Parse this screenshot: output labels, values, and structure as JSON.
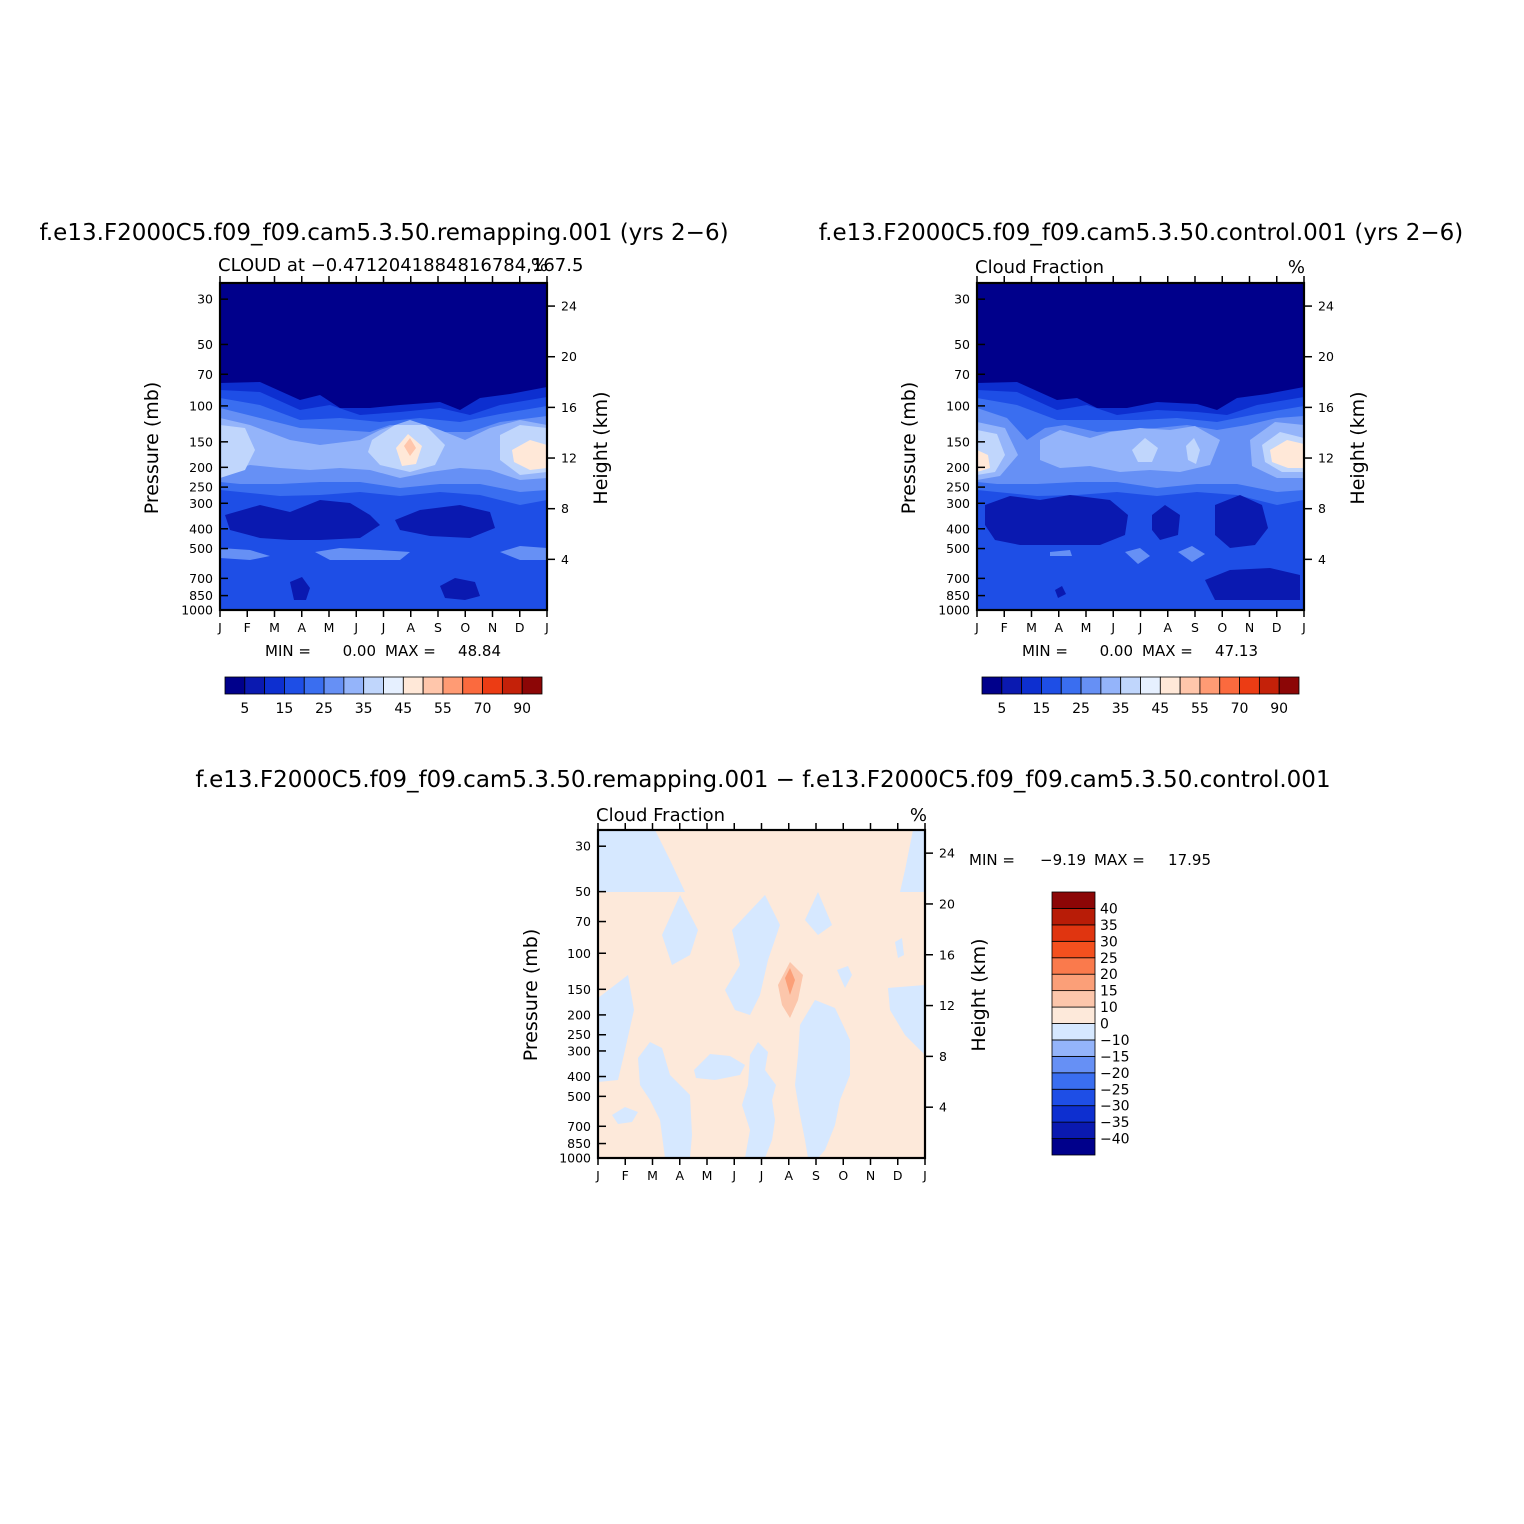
{
  "chart_data": [
    {
      "type": "heatmap",
      "title": "f.e13.F2000C5.f09_f09.cam5.3.50.remapping.001 (yrs 2−6)",
      "subtitle_left": "CLOUD at −0.4712041884816784,167.5",
      "subtitle_right": "%",
      "ylabel": "Pressure (mb)",
      "ylabel_right": "Height (km)",
      "x_ticks": [
        "J",
        "F",
        "M",
        "A",
        "M",
        "J",
        "J",
        "A",
        "S",
        "O",
        "N",
        "D",
        "J"
      ],
      "y_ticks": [
        30,
        50,
        70,
        100,
        150,
        200,
        250,
        300,
        400,
        500,
        700,
        850,
        1000
      ],
      "y_right_ticks": [
        24,
        20,
        16,
        12,
        8,
        4
      ],
      "ylim": [
        1000,
        25
      ],
      "y_scale": "log",
      "min_label": "MIN =",
      "min": "0.00",
      "max_label": "MAX =",
      "max": "48.84",
      "colorbar": {
        "orientation": "horizontal",
        "levels": [
          5,
          10,
          15,
          20,
          25,
          30,
          35,
          40,
          45,
          50,
          55,
          60,
          70,
          80,
          90
        ],
        "labels": [
          "5",
          "15",
          "25",
          "35",
          "45",
          "55",
          "70",
          "90"
        ],
        "colors": [
          "#00008b",
          "#0a19b0",
          "#0d2fd0",
          "#1e4ee6",
          "#3a6ef0",
          "#6690f5",
          "#94b4fa",
          "#c0d6fc",
          "#e6f0ff",
          "#ffe8d8",
          "#ffc6ab",
          "#ff9b74",
          "#fb6a3e",
          "#ec3c14",
          "#c42109",
          "#8c0606"
        ]
      },
      "grid": false
    },
    {
      "type": "heatmap",
      "title": "f.e13.F2000C5.f09_f09.cam5.3.50.control.001 (yrs 2−6)",
      "subtitle_left": "Cloud Fraction",
      "subtitle_right": "%",
      "ylabel": "Pressure (mb)",
      "ylabel_right": "Height (km)",
      "x_ticks": [
        "J",
        "F",
        "M",
        "A",
        "M",
        "J",
        "J",
        "A",
        "S",
        "O",
        "N",
        "D",
        "J"
      ],
      "y_ticks": [
        30,
        50,
        70,
        100,
        150,
        200,
        250,
        300,
        400,
        500,
        700,
        850,
        1000
      ],
      "y_right_ticks": [
        24,
        20,
        16,
        12,
        8,
        4
      ],
      "ylim": [
        1000,
        25
      ],
      "y_scale": "log",
      "min_label": "MIN =",
      "min": "0.00",
      "max_label": "MAX =",
      "max": "47.13",
      "colorbar": {
        "orientation": "horizontal",
        "levels": [
          5,
          10,
          15,
          20,
          25,
          30,
          35,
          40,
          45,
          50,
          55,
          60,
          70,
          80,
          90
        ],
        "labels": [
          "5",
          "15",
          "25",
          "35",
          "45",
          "55",
          "70",
          "90"
        ],
        "colors": [
          "#00008b",
          "#0a19b0",
          "#0d2fd0",
          "#1e4ee6",
          "#3a6ef0",
          "#6690f5",
          "#94b4fa",
          "#c0d6fc",
          "#e6f0ff",
          "#ffe8d8",
          "#ffc6ab",
          "#ff9b74",
          "#fb6a3e",
          "#ec3c14",
          "#c42109",
          "#8c0606"
        ]
      },
      "grid": false
    },
    {
      "type": "heatmap",
      "title": "f.e13.F2000C5.f09_f09.cam5.3.50.remapping.001 − f.e13.F2000C5.f09_f09.cam5.3.50.control.001",
      "subtitle_left": "Cloud Fraction",
      "subtitle_right": "%",
      "ylabel": "Pressure (mb)",
      "ylabel_right": "Height (km)",
      "x_ticks": [
        "J",
        "F",
        "M",
        "A",
        "M",
        "J",
        "J",
        "A",
        "S",
        "O",
        "N",
        "D",
        "J"
      ],
      "y_ticks": [
        30,
        50,
        70,
        100,
        150,
        200,
        250,
        300,
        400,
        500,
        700,
        850,
        1000
      ],
      "y_right_ticks": [
        24,
        20,
        16,
        12,
        8,
        4
      ],
      "ylim": [
        1000,
        25
      ],
      "y_scale": "log",
      "min_label": "MIN =",
      "min": "−9.19",
      "max_label": "MAX =",
      "max": "17.95",
      "colorbar": {
        "orientation": "vertical",
        "levels": [
          -40,
          -35,
          -30,
          -25,
          -20,
          -15,
          -10,
          0,
          10,
          15,
          20,
          25,
          30,
          35,
          40
        ],
        "labels": [
          "−40",
          "−35",
          "−30",
          "−25",
          "−20",
          "−15",
          "−10",
          "0",
          "10",
          "15",
          "20",
          "25",
          "30",
          "35",
          "40"
        ],
        "colors": [
          "#00008b",
          "#0a19b0",
          "#0d2fd0",
          "#1e4ee6",
          "#3a6ef0",
          "#6690f5",
          "#94b4fa",
          "#d6e8ff",
          "#fde9da",
          "#fcc6ab",
          "#fb9f78",
          "#fa7a4c",
          "#f4501e",
          "#e03510",
          "#b81c07",
          "#8c0606"
        ]
      },
      "grid": false
    }
  ]
}
